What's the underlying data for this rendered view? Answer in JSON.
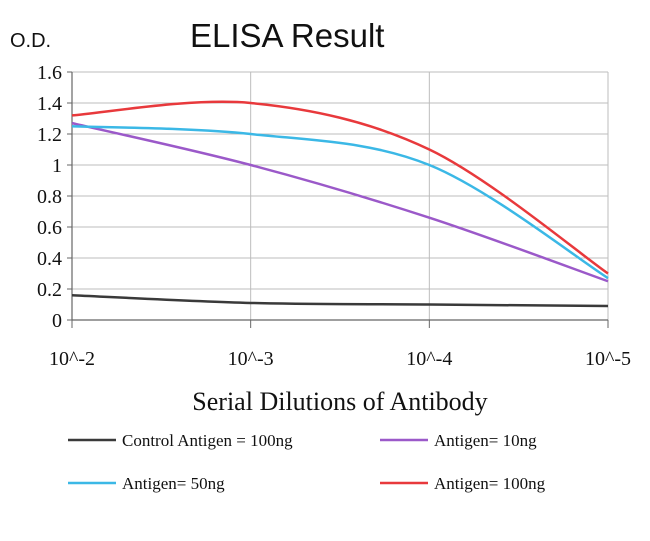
{
  "chart_data": {
    "type": "line",
    "title": "ELISA Result",
    "ylabel": "O.D.",
    "xlabel": "Serial Dilutions of Antibody",
    "categories": [
      "10^-2",
      "10^-3",
      "10^-4",
      "10^-5"
    ],
    "ylim": [
      0,
      1.6
    ],
    "yticks": [
      "0",
      "0.2",
      "0.4",
      "0.6",
      "0.8",
      "1",
      "1.2",
      "1.4",
      "1.6"
    ],
    "grid": true,
    "legend_position": "bottom",
    "series": [
      {
        "name": "Control Antigen = 100ng",
        "color": "#3a3a3a",
        "values": [
          0.16,
          0.11,
          0.1,
          0.09
        ]
      },
      {
        "name": "Antigen= 10ng",
        "color": "#9b59c9",
        "values": [
          1.27,
          1.0,
          0.66,
          0.25
        ]
      },
      {
        "name": "Antigen= 50ng",
        "color": "#3bb8e6",
        "values": [
          1.25,
          1.2,
          1.0,
          0.27
        ]
      },
      {
        "name": "Antigen= 100ng",
        "color": "#e8393c",
        "values": [
          1.32,
          1.4,
          1.1,
          0.3
        ]
      }
    ]
  }
}
